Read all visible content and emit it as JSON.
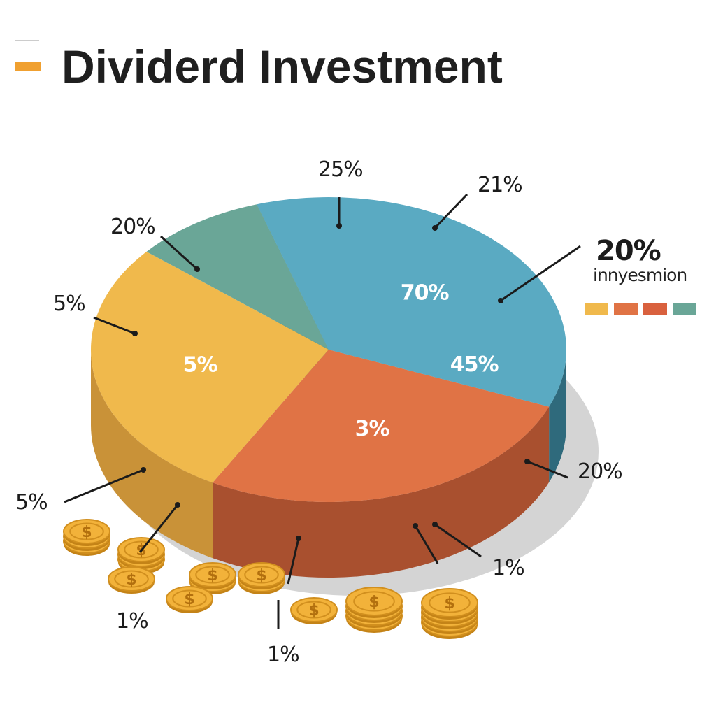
{
  "chart_data": {
    "type": "pie",
    "title": "Dividerd Investment",
    "slices": [
      {
        "label": "3%",
        "value": 27,
        "color": "#e07345",
        "side_color": "#a9502f",
        "label_text": "3%"
      },
      {
        "label": "5%",
        "value": 28,
        "color": "#f0b94c",
        "side_color": "#c99238",
        "label_text": "5%"
      },
      {
        "label": "",
        "value": 9,
        "color": "#6aa697",
        "side_color": "#4f8475",
        "label_text": ""
      },
      {
        "label": "70%",
        "value": 36,
        "color": "#5aaac2",
        "side_color": "#2f6a7c",
        "label_text": "70%",
        "second_label_text": "45%"
      }
    ],
    "callouts": [
      "25%",
      "21%",
      "20%",
      "5%",
      "20%",
      "5%",
      "1%",
      "1%",
      "1%"
    ],
    "callout_big": "20%",
    "legend": {
      "title": "innyesmion",
      "colors": [
        "#f0b94c",
        "#e07345",
        "#d9613e",
        "#6aa697"
      ]
    },
    "header_accent_color": "#f0a030"
  }
}
